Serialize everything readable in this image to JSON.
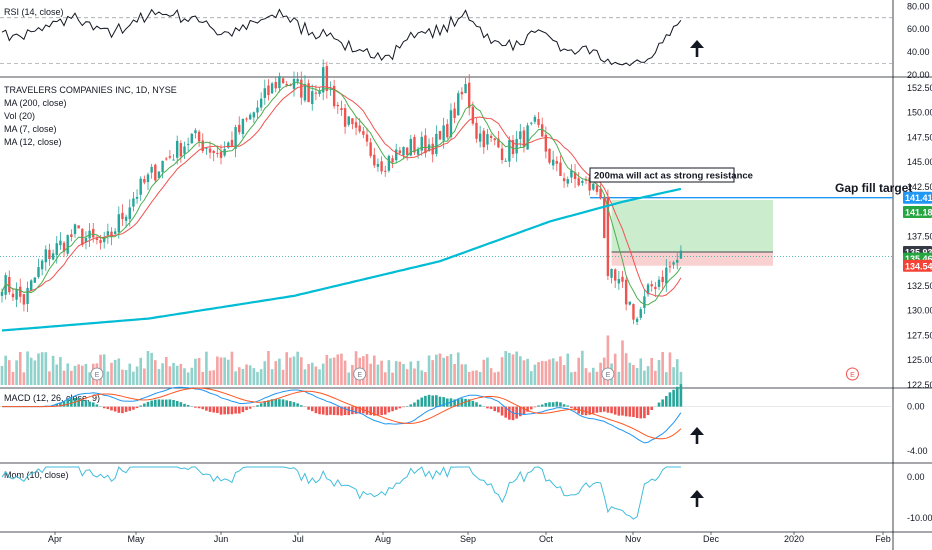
{
  "chart_data": {
    "type": "candlestick",
    "symbol_title": "TRAVELERS COMPANIES INC, 1D, NYSE",
    "indicators_legend": [
      "MA (200, close)",
      "Vol (20)",
      "MA (7, close)",
      "MA (12, close)"
    ],
    "colors": {
      "up": "#26a69a",
      "down": "#ef5350",
      "up_vol": "#8fd1cb",
      "down_vol": "#f5a3a3",
      "ma200": "#00bcd4",
      "ma7": "#4caf50",
      "ma12": "#ef5350",
      "macd_line": "#2196f3",
      "macd_signal": "#ff5722",
      "momentum": "#42bddb",
      "rsi": "#131722",
      "target_fill": "#b7e4b9",
      "stop_fill": "#f8c6c6",
      "gap_line": "#2196f3",
      "grid": "#e0e3eb",
      "axis_text": "#131722",
      "badge_blue": "#2196f3",
      "badge_green": "#26a641",
      "badge_red": "#f44336",
      "badge_dark": "#363a45"
    },
    "x_labels": [
      "Apr",
      "May",
      "Jun",
      "Jul",
      "Aug",
      "Sep",
      "Oct",
      "Nov",
      "Dec",
      "2020",
      "Feb"
    ],
    "price": {
      "ylim": [
        122.5,
        153.5
      ],
      "y_ticks": [
        "152.50",
        "150.00",
        "147.50",
        "145.00",
        "142.50",
        "137.50",
        "132.50",
        "130.00",
        "127.50",
        "125.00",
        "122.50"
      ],
      "badges": [
        {
          "label": "141.41",
          "value": 141.41,
          "kind": "gap"
        },
        {
          "label": "141.18",
          "value": 141.18,
          "kind": "target"
        },
        {
          "label": "135.93",
          "value": 135.93,
          "kind": "entry"
        },
        {
          "label": "135.46",
          "value": 135.46,
          "kind": "last"
        },
        {
          "label": "134.54",
          "value": 134.54,
          "kind": "stop"
        }
      ],
      "anchors": [
        {
          "i": 0,
          "c": 133.0
        },
        {
          "i": 6,
          "c": 131.0
        },
        {
          "i": 12,
          "c": 135.5
        },
        {
          "i": 20,
          "c": 137.8
        },
        {
          "i": 28,
          "c": 136.5
        },
        {
          "i": 36,
          "c": 141.5
        },
        {
          "i": 44,
          "c": 145.0
        },
        {
          "i": 52,
          "c": 147.5
        },
        {
          "i": 60,
          "c": 145.8
        },
        {
          "i": 68,
          "c": 149.5
        },
        {
          "i": 76,
          "c": 153.5
        },
        {
          "i": 84,
          "c": 152.0
        },
        {
          "i": 88,
          "c": 153.5
        },
        {
          "i": 96,
          "c": 148.0
        },
        {
          "i": 104,
          "c": 145.0
        },
        {
          "i": 112,
          "c": 146.5
        },
        {
          "i": 120,
          "c": 147.0
        },
        {
          "i": 127,
          "c": 152.5
        },
        {
          "i": 130,
          "c": 148.0
        },
        {
          "i": 138,
          "c": 146.0
        },
        {
          "i": 146,
          "c": 148.5
        },
        {
          "i": 152,
          "c": 144.0
        },
        {
          "i": 158,
          "c": 143.0
        },
        {
          "i": 164,
          "c": 142.0
        },
        {
          "i": 166,
          "c": 133.5
        },
        {
          "i": 170,
          "c": 132.0
        },
        {
          "i": 174,
          "c": 129.2
        },
        {
          "i": 178,
          "c": 132.5
        },
        {
          "i": 182,
          "c": 134.0
        },
        {
          "i": 186,
          "c": 135.5
        }
      ],
      "ma200": [
        [
          0,
          128.0
        ],
        [
          40,
          129.2
        ],
        [
          80,
          131.5
        ],
        [
          120,
          135.0
        ],
        [
          150,
          139.0
        ],
        [
          170,
          141.0
        ],
        [
          186,
          142.3
        ]
      ]
    },
    "volume": {
      "max": 1.0
    },
    "gap_fill": {
      "label": "Gap fill target",
      "value": 141.41
    },
    "position": {
      "start_i": 167,
      "end_i": 215,
      "target": 141.18,
      "entry": 135.93,
      "stop": 134.54
    },
    "annotation": {
      "text": "200ma will act as strong resistance"
    },
    "earnings_markers": [
      {
        "i": 26
      },
      {
        "i": 98
      },
      {
        "i": 166
      },
      {
        "i": 233
      }
    ],
    "earnings_label": "E",
    "rsi": {
      "title": "RSI (14, close)",
      "ylim": [
        20,
        82
      ],
      "y_ticks": [
        "80.00",
        "60.00",
        "40.00",
        "20.00"
      ],
      "bands": [
        70,
        30
      ]
    },
    "macd": {
      "title": "MACD (12, 26, close, 9)",
      "ylim": [
        -5,
        1.5
      ],
      "y_ticks": [
        "0.00",
        "-4.00"
      ]
    },
    "momentum": {
      "title": "Mom (10, close)",
      "ylim": [
        -13,
        3
      ],
      "y_ticks": [
        "0.00",
        "-10.00"
      ]
    },
    "arrows": [
      "up",
      "up",
      "up"
    ]
  }
}
